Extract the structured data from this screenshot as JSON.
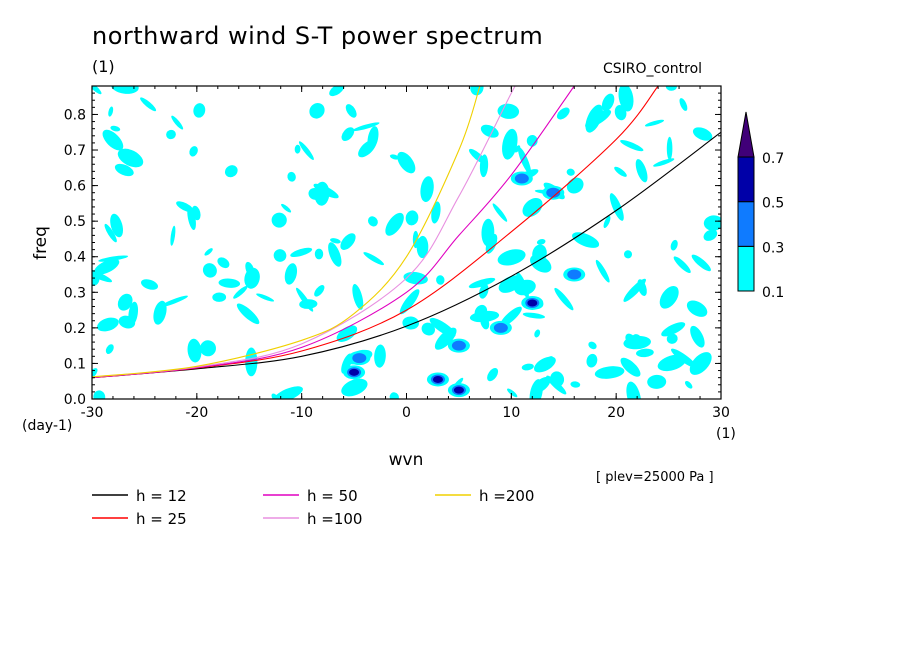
{
  "header": {
    "title": "northward wind S-T power spectrum",
    "subtitle_left": "(1)",
    "subtitle_right": "CSIRO_control",
    "plev_note": "[ plev=25000 Pa ]"
  },
  "chart_data": {
    "type": "heatmap",
    "title": "northward wind S-T power spectrum",
    "xlabel": "wvn",
    "ylabel": "freq",
    "x_unit_label": "(1)",
    "y_unit_label": "(day-1)",
    "xlim": [
      -30,
      30
    ],
    "ylim": [
      0,
      0.88
    ],
    "x_ticks": [
      -30,
      -20,
      -10,
      0,
      10,
      20,
      30
    ],
    "x_tick_labels": [
      "-30",
      "-20",
      "-10",
      "0",
      "10",
      "20",
      "30"
    ],
    "y_ticks": [
      0,
      0.1,
      0.2,
      0.3,
      0.4,
      0.5,
      0.6,
      0.7,
      0.8
    ],
    "y_tick_labels": [
      "0.0",
      "0.1",
      "0.2",
      "0.3",
      "0.4",
      "0.5",
      "0.6",
      "0.7",
      "0.8"
    ],
    "colorbar": {
      "levels": [
        0.1,
        0.3,
        0.5,
        0.7
      ],
      "labels": [
        "0.1",
        "0.3",
        "0.5",
        "0.7"
      ],
      "colors": [
        "#00ffff",
        "#0f7bff",
        "#0000a8",
        "#400078"
      ]
    },
    "curves": [
      {
        "name": "h = 12",
        "h": 12,
        "color": "#000000",
        "points": [
          [
            -30,
            0.06
          ],
          [
            -20,
            0.085
          ],
          [
            -10,
            0.12
          ],
          [
            0,
            0.205
          ],
          [
            10,
            0.345
          ],
          [
            20,
            0.53
          ],
          [
            30,
            0.75
          ]
        ]
      },
      {
        "name": "h = 25",
        "h": 25,
        "color": "#ff0000",
        "points": [
          [
            -30,
            0.06
          ],
          [
            -20,
            0.087
          ],
          [
            -10,
            0.135
          ],
          [
            0,
            0.25
          ],
          [
            10,
            0.47
          ],
          [
            20,
            0.73
          ],
          [
            24,
            0.88
          ]
        ]
      },
      {
        "name": "h = 50",
        "h": 50,
        "color": "#e000c0",
        "points": [
          [
            -30,
            0.06
          ],
          [
            -20,
            0.088
          ],
          [
            -10,
            0.145
          ],
          [
            0,
            0.3
          ],
          [
            5,
            0.46
          ],
          [
            10,
            0.63
          ],
          [
            16,
            0.88
          ]
        ]
      },
      {
        "name": "h =100",
        "h": 100,
        "color": "#e890e0",
        "points": [
          [
            -30,
            0.062
          ],
          [
            -20,
            0.09
          ],
          [
            -10,
            0.155
          ],
          [
            0,
            0.34
          ],
          [
            5,
            0.57
          ],
          [
            10,
            0.86
          ],
          [
            10.5,
            0.88
          ]
        ]
      },
      {
        "name": "h =200",
        "h": 200,
        "color": "#f0d000",
        "points": [
          [
            -30,
            0.062
          ],
          [
            -20,
            0.092
          ],
          [
            -10,
            0.165
          ],
          [
            -5,
            0.24
          ],
          [
            0,
            0.4
          ],
          [
            5,
            0.7
          ],
          [
            7,
            0.88
          ]
        ]
      }
    ],
    "features": [
      {
        "x": 3,
        "y": 0.055,
        "level": 0.5
      },
      {
        "x": 5,
        "y": 0.025,
        "level": 0.5
      },
      {
        "x": -5,
        "y": 0.075,
        "level": 0.5
      },
      {
        "x": -4.5,
        "y": 0.115,
        "level": 0.3
      },
      {
        "x": 5,
        "y": 0.15,
        "level": 0.3
      },
      {
        "x": 9,
        "y": 0.2,
        "level": 0.3
      },
      {
        "x": 11,
        "y": 0.62,
        "level": 0.3
      },
      {
        "x": 12,
        "y": 0.27,
        "level": 0.5
      },
      {
        "x": 14,
        "y": 0.58,
        "level": 0.3
      },
      {
        "x": 16,
        "y": 0.35,
        "level": 0.3
      }
    ]
  }
}
